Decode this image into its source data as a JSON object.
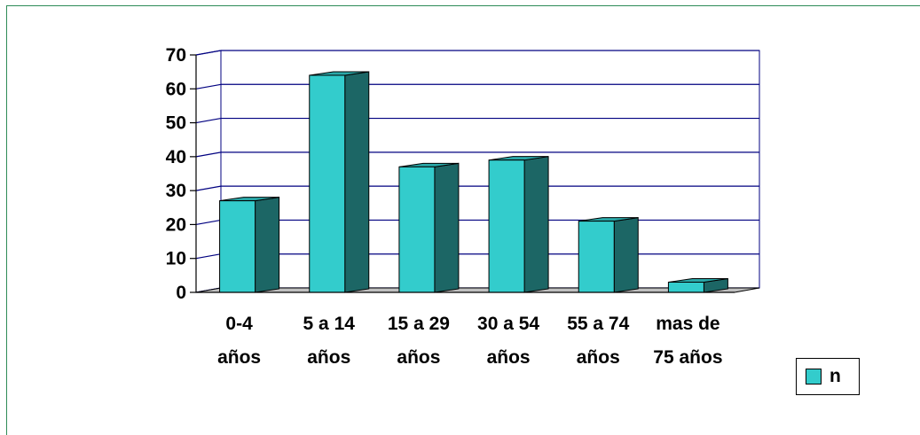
{
  "chart_data": {
    "type": "bar",
    "style": "3d-column",
    "categories": [
      [
        "0-4",
        "años"
      ],
      [
        "5 a 14",
        "años"
      ],
      [
        "15 a 29",
        "años"
      ],
      [
        "30 a 54",
        "años"
      ],
      [
        "55 a 74",
        "años"
      ],
      [
        "mas de",
        "75 años"
      ]
    ],
    "series": [
      {
        "name": "n",
        "values": [
          27,
          64,
          37,
          39,
          21,
          3
        ]
      }
    ],
    "yticks": [
      "0",
      "10",
      "20",
      "30",
      "40",
      "50",
      "60",
      "70"
    ],
    "ylim": [
      0,
      70
    ],
    "grid": true,
    "legend": {
      "position": "bottom-right",
      "label": "n"
    },
    "colors": {
      "bar_front": "#33cccc",
      "bar_side": "#1c6665",
      "bar_top": "#2aa8a8",
      "gridline": "#000080",
      "frame": "#000080",
      "floor": "#c0c0c0"
    }
  }
}
